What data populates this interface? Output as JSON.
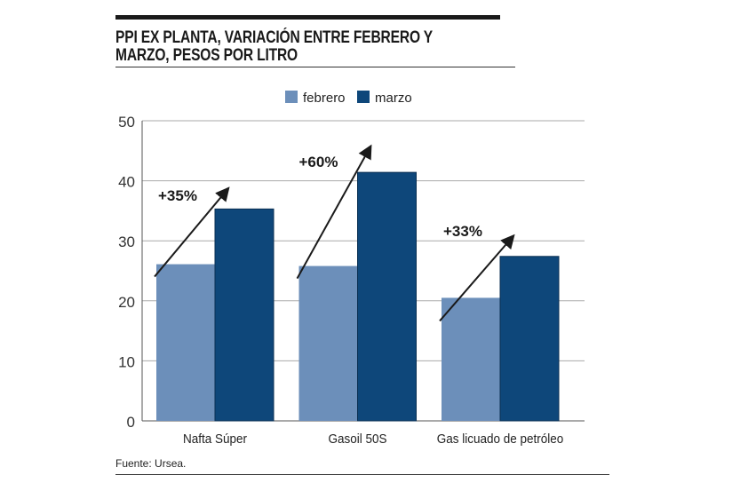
{
  "title": "PPI EX PLANTA,  VARIACIÓN ENTRE FEBRERO Y MARZO, PESOS POR LITRO",
  "source": "Fuente: Ursea.",
  "chart_data": {
    "type": "bar",
    "title": "PPI EX PLANTA,  VARIACIÓN ENTRE FEBRERO Y MARZO, PESOS POR LITRO",
    "categories": [
      "Nafta Súper",
      "Gasoil 50S",
      "Gas licuado de petróleo"
    ],
    "series": [
      {
        "name": "febrero",
        "values": [
          26.1,
          25.8,
          20.5
        ],
        "color": "#6c8fba"
      },
      {
        "name": "marzo",
        "values": [
          35.3,
          41.4,
          27.4
        ],
        "color": "#0e477a"
      }
    ],
    "annotations": [
      "+35%",
      "+60%",
      "+33%"
    ],
    "ylim": [
      0,
      50
    ],
    "yticks": [
      0,
      10,
      20,
      30,
      40,
      50
    ],
    "grid": true,
    "legend": "top-center"
  }
}
